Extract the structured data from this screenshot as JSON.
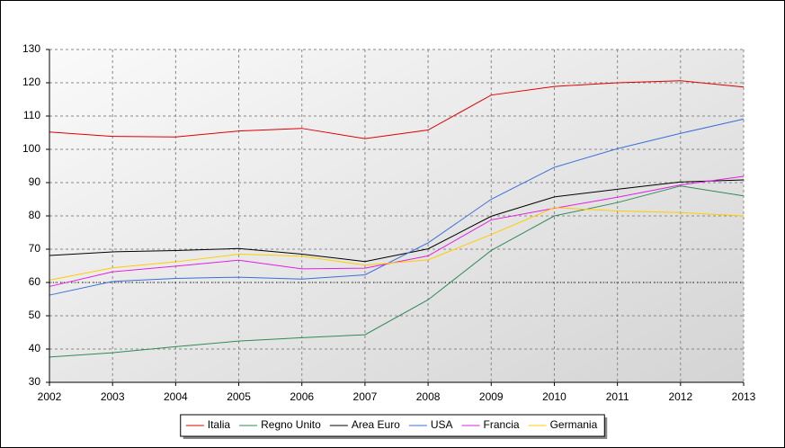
{
  "chart_data": {
    "type": "line",
    "x": [
      2002,
      2003,
      2004,
      2005,
      2006,
      2007,
      2008,
      2009,
      2010,
      2011,
      2012,
      2013
    ],
    "xlim": [
      2002,
      2013
    ],
    "xticks": [
      2002,
      2003,
      2004,
      2005,
      2006,
      2007,
      2008,
      2009,
      2010,
      2011,
      2012,
      2013
    ],
    "ylim": [
      30,
      130
    ],
    "yticks": [
      30,
      40,
      50,
      60,
      70,
      80,
      90,
      100,
      110,
      120,
      130
    ],
    "grid": true,
    "reference_line": 60,
    "legend": "bottom",
    "series": [
      {
        "name": "Italia",
        "color": "#dd0000",
        "values": [
          105.2,
          103.9,
          103.7,
          105.5,
          106.3,
          103.2,
          105.8,
          116.3,
          118.9,
          120.0,
          120.6,
          118.7
        ]
      },
      {
        "name": "Regno Unito",
        "color": "#2e8b57",
        "values": [
          37.6,
          38.9,
          40.7,
          42.4,
          43.4,
          44.3,
          54.8,
          69.6,
          80.0,
          84.0,
          89.0,
          86.0
        ]
      },
      {
        "name": "Area Euro",
        "color": "#000000",
        "values": [
          68.1,
          69.2,
          69.6,
          70.2,
          68.5,
          66.3,
          70.1,
          79.9,
          85.7,
          88.0,
          90.2,
          90.8
        ]
      },
      {
        "name": "USA",
        "color": "#3a6fd8",
        "values": [
          56.2,
          60.3,
          61.2,
          61.6,
          61.0,
          62.3,
          71.9,
          85.0,
          94.6,
          100.2,
          104.8,
          109.1
        ]
      },
      {
        "name": "Francia",
        "color": "#e020e0",
        "values": [
          58.8,
          63.2,
          64.9,
          66.7,
          64.1,
          64.3,
          68.0,
          78.8,
          82.3,
          85.6,
          89.3,
          91.9
        ]
      },
      {
        "name": "Germania",
        "color": "#ffcc00",
        "values": [
          60.7,
          64.4,
          66.2,
          68.5,
          67.9,
          65.2,
          66.8,
          74.4,
          82.5,
          81.5,
          81.0,
          80.0
        ]
      }
    ]
  }
}
